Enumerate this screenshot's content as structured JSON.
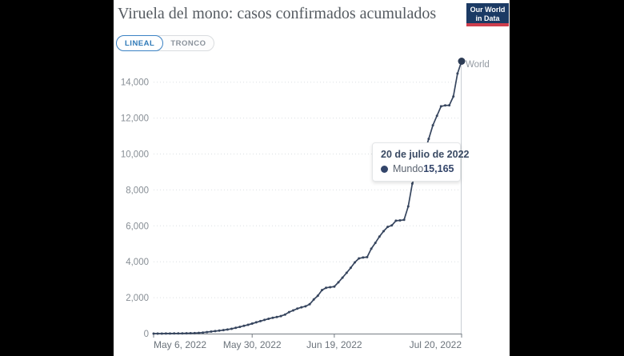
{
  "page": {
    "background": "#000000",
    "panel_bg": "#ffffff"
  },
  "header": {
    "title": "Viruela del mono: casos confirmados acumulados",
    "logo": {
      "line1": "Our World",
      "line2": "in Data",
      "bg": "#1b3a64",
      "stripe": "#ce3e4d"
    }
  },
  "tabs": [
    {
      "label": "LINEAL",
      "active": true
    },
    {
      "label": "TRONCO",
      "active": false
    }
  ],
  "tooltip": {
    "date": "20 de julio de 2022",
    "series": "Mundo",
    "value": "15,165"
  },
  "end_label": "World",
  "colors": {
    "grid": "#dcdfe2",
    "axis": "#767d84",
    "hover_line": "#c9ced3",
    "y_label": "#878e95",
    "x_label": "#6b737b",
    "line": "#36455e",
    "end_dot": "#2d3c55",
    "tooltip_accent": "#33456a",
    "accent_blue": "#3b82c4"
  },
  "chart_data": {
    "type": "line",
    "title": "Viruela del mono: casos confirmados acumulados",
    "xlabel": "",
    "ylabel": "",
    "grid": "dotted-horizontal",
    "legend_position": "end-of-line-label",
    "start_date": "2022-05-06",
    "end_date": "2022-07-20",
    "cadence": "daily",
    "ylim": [
      0,
      15500
    ],
    "y_ticks": [
      {
        "value": 0,
        "label": "0"
      },
      {
        "value": 2000,
        "label": "2,000"
      },
      {
        "value": 4000,
        "label": "4,000"
      },
      {
        "value": 6000,
        "label": "6,000"
      },
      {
        "value": 8000,
        "label": "8,000"
      },
      {
        "value": 10000,
        "label": "10,000"
      },
      {
        "value": 12000,
        "label": "12,000"
      },
      {
        "value": 14000,
        "label": "14,000"
      }
    ],
    "x_tick_labels": [
      {
        "label": "May 6, 2022",
        "day": 0,
        "align": "start"
      },
      {
        "label": "May 30, 2022",
        "day": 24,
        "align": "middle"
      },
      {
        "label": "Jun 19, 2022",
        "day": 44,
        "align": "middle"
      },
      {
        "label": "Jul 20, 2022",
        "day": 75,
        "align": "end"
      }
    ],
    "x": [
      "2022-05-06",
      "2022-05-07",
      "2022-05-08",
      "2022-05-09",
      "2022-05-10",
      "2022-05-11",
      "2022-05-12",
      "2022-05-13",
      "2022-05-14",
      "2022-05-15",
      "2022-05-16",
      "2022-05-17",
      "2022-05-18",
      "2022-05-19",
      "2022-05-20",
      "2022-05-21",
      "2022-05-22",
      "2022-05-23",
      "2022-05-24",
      "2022-05-25",
      "2022-05-26",
      "2022-05-27",
      "2022-05-28",
      "2022-05-29",
      "2022-05-30",
      "2022-05-31",
      "2022-06-01",
      "2022-06-02",
      "2022-06-03",
      "2022-06-04",
      "2022-06-05",
      "2022-06-06",
      "2022-06-07",
      "2022-06-08",
      "2022-06-09",
      "2022-06-10",
      "2022-06-11",
      "2022-06-12",
      "2022-06-13",
      "2022-06-14",
      "2022-06-15",
      "2022-06-16",
      "2022-06-17",
      "2022-06-18",
      "2022-06-19",
      "2022-06-20",
      "2022-06-21",
      "2022-06-22",
      "2022-06-23",
      "2022-06-24",
      "2022-06-25",
      "2022-06-26",
      "2022-06-27",
      "2022-06-28",
      "2022-06-29",
      "2022-06-30",
      "2022-07-01",
      "2022-07-02",
      "2022-07-03",
      "2022-07-04",
      "2022-07-05",
      "2022-07-06",
      "2022-07-07",
      "2022-07-08",
      "2022-07-09",
      "2022-07-10",
      "2022-07-11",
      "2022-07-12",
      "2022-07-13",
      "2022-07-14",
      "2022-07-15",
      "2022-07-16",
      "2022-07-17",
      "2022-07-18",
      "2022-07-19",
      "2022-07-20"
    ],
    "series": [
      {
        "name": "World",
        "name_es": "Mundo",
        "color": "#36455e",
        "final_value": 15165,
        "values": [
          1,
          2,
          2,
          3,
          5,
          7,
          9,
          13,
          17,
          21,
          28,
          41,
          60,
          84,
          110,
          138,
          165,
          196,
          228,
          269,
          321,
          375,
          434,
          490,
          557,
          626,
          694,
          760,
          824,
          880,
          921,
          975,
          1061,
          1197,
          1290,
          1391,
          1465,
          1520,
          1634,
          1897,
          2110,
          2421,
          2553,
          2583,
          2621,
          2857,
          3113,
          3387,
          3661,
          3965,
          4186,
          4236,
          4257,
          4728,
          5051,
          5402,
          5702,
          5941,
          6022,
          6287,
          6302,
          6334,
          7082,
          8351,
          8970,
          9520,
          10102,
          10840,
          11601,
          12130,
          12657,
          12702,
          12713,
          13201,
          14480,
          15165
        ]
      }
    ]
  }
}
